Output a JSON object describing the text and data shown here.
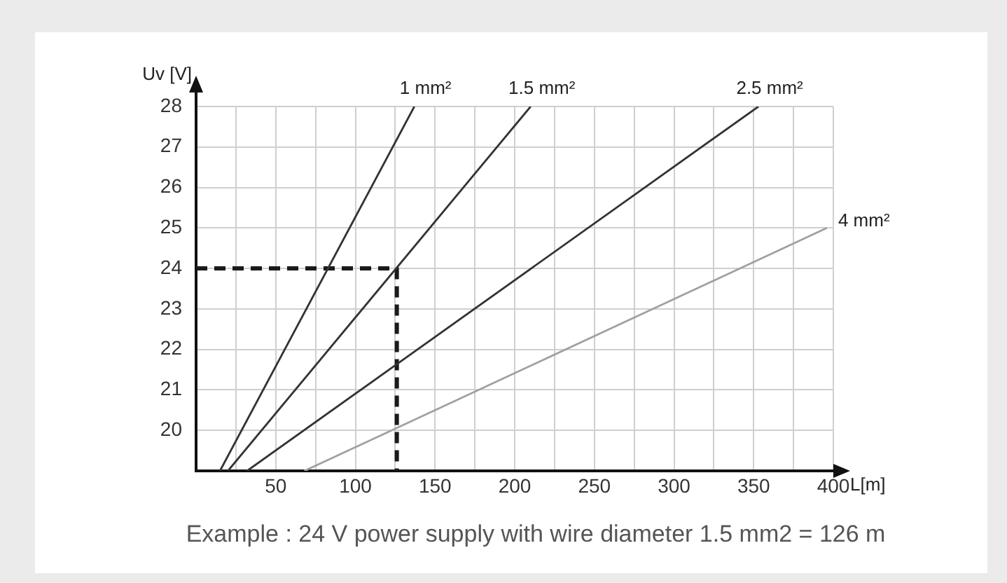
{
  "chart_data": {
    "type": "line",
    "xlabel": "L[m]",
    "ylabel": "Uv [V]",
    "annotations": [
      "Example : 24 V power supply with wire diameter 1.5 mm2 = 126 m"
    ],
    "series": [
      {
        "name": "1 mm²",
        "color": "#333333",
        "x": [
          15,
          137
        ],
        "values": [
          19,
          28
        ]
      },
      {
        "name": "1.5 mm²",
        "color": "#333333",
        "x": [
          20,
          210
        ],
        "values": [
          19,
          28
        ]
      },
      {
        "name": "2.5 mm²",
        "color": "#333333",
        "x": [
          32,
          353
        ],
        "values": [
          19,
          28
        ]
      },
      {
        "name": "4 mm²",
        "color": "#a0a0a0",
        "x": [
          68,
          396
        ],
        "values": [
          19,
          25
        ]
      },
      {
        "color": "#1a1a1a",
        "line_style": "dashed",
        "x": [
          0,
          126,
          126
        ],
        "values": [
          24,
          24,
          19
        ]
      }
    ],
    "xlim": [
      0,
      400
    ],
    "xticks": [
      {
        "value": 0,
        "label": null
      },
      {
        "value": 25,
        "label": null
      },
      50,
      {
        "value": 75,
        "label": null
      },
      100,
      {
        "value": 125,
        "label": null
      },
      150,
      {
        "value": 175,
        "label": null
      },
      200,
      {
        "value": 225,
        "label": null
      },
      250,
      {
        "value": 275,
        "label": null
      },
      300,
      {
        "value": 325,
        "label": null
      },
      350,
      {
        "value": 375,
        "label": null
      },
      400
    ],
    "ylim": [
      19,
      28
    ],
    "yticks": [
      {
        "value": 19,
        "label": null
      },
      20,
      21,
      22,
      23,
      24,
      25,
      26,
      27,
      28
    ],
    "grid": true,
    "legend": false,
    "marker": "none",
    "line_style": "solid"
  }
}
